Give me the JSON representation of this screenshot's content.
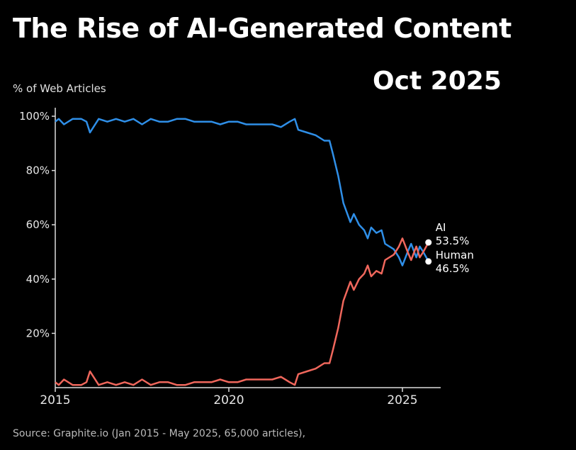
{
  "chart_data": {
    "type": "line",
    "title": "The Rise of AI-Generated Content",
    "subtitle": "Oct 2025",
    "ylabel": "% of Web Articles",
    "xlabel": "",
    "source": "Source: Graphite.io (Jan 2015 - May 2025, 65,000 articles),",
    "xlim": [
      2015,
      2025.75
    ],
    "ylim": [
      0,
      100
    ],
    "x_ticks": [
      2015,
      2020,
      2025
    ],
    "x_tick_labels": [
      "2015",
      "2020",
      "2025"
    ],
    "y_ticks": [
      20,
      40,
      60,
      80,
      100
    ],
    "y_tick_labels": [
      "20%",
      "40%",
      "60%",
      "80%",
      "100%"
    ],
    "x": [
      2015.0,
      2015.1,
      2015.25,
      2015.5,
      2015.75,
      2015.9,
      2016.0,
      2016.25,
      2016.5,
      2016.75,
      2017.0,
      2017.25,
      2017.5,
      2017.75,
      2018.0,
      2018.25,
      2018.5,
      2018.75,
      2019.0,
      2019.25,
      2019.5,
      2019.75,
      2020.0,
      2020.25,
      2020.5,
      2020.75,
      2021.0,
      2021.25,
      2021.5,
      2021.75,
      2021.9,
      2022.0,
      2022.25,
      2022.5,
      2022.75,
      2022.9,
      2023.0,
      2023.15,
      2023.3,
      2023.5,
      2023.6,
      2023.75,
      2023.9,
      2024.0,
      2024.1,
      2024.25,
      2024.4,
      2024.5,
      2024.75,
      2024.9,
      2025.0,
      2025.15,
      2025.25,
      2025.4,
      2025.5,
      2025.6,
      2025.75
    ],
    "series": [
      {
        "name": "AI",
        "color": "#f0675c",
        "end_label": "AI",
        "end_value_label": "53.5%",
        "values": [
          2,
          1,
          3,
          1,
          1,
          2,
          6,
          1,
          2,
          1,
          2,
          1,
          3,
          1,
          2,
          2,
          1,
          1,
          2,
          2,
          2,
          3,
          2,
          2,
          3,
          3,
          3,
          3,
          4,
          2,
          1,
          5,
          6,
          7,
          9,
          9,
          14,
          22,
          32,
          39,
          36,
          40,
          42,
          45,
          41,
          43,
          42,
          47,
          49,
          52,
          55,
          50,
          47,
          52,
          48,
          50,
          53.5
        ]
      },
      {
        "name": "Human",
        "color": "#2f8fe8",
        "end_label": "Human",
        "end_value_label": "46.5%",
        "values": [
          98,
          99,
          97,
          99,
          99,
          98,
          94,
          99,
          98,
          99,
          98,
          99,
          97,
          99,
          98,
          98,
          99,
          99,
          98,
          98,
          98,
          97,
          98,
          98,
          97,
          97,
          97,
          97,
          96,
          98,
          99,
          95,
          94,
          93,
          91,
          91,
          86,
          78,
          68,
          61,
          64,
          60,
          58,
          55,
          59,
          57,
          58,
          53,
          51,
          48,
          45,
          50,
          53,
          48,
          52,
          50,
          46.5
        ]
      }
    ]
  }
}
